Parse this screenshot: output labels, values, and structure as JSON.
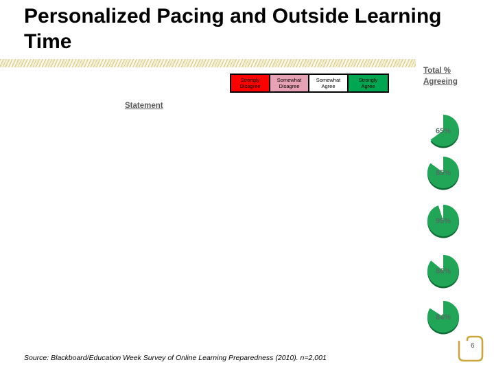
{
  "slide": {
    "title": "Personalized Pacing and Outside Learning Time",
    "page_number": "6",
    "source": "Source: Blackboard/Education Week Survey of Online Learning Preparedness (2010). n=2,001"
  },
  "headers": {
    "statement": "Statement",
    "total_agreeing": "Total % Agreeing"
  },
  "legend": {
    "columns": [
      {
        "label": "Strongly\nDisagree",
        "bg": "#FF0000"
      },
      {
        "label": "Somewhat\nDisagree",
        "bg": "#E8A2B6"
      },
      {
        "label": "Somewhat\nAgree",
        "bg": "#FFFFFF"
      },
      {
        "label": "Strongly\nAgree",
        "bg": "#00A651"
      }
    ]
  },
  "chart_data": {
    "type": "pie",
    "title": "Personalized Pacing and Outside Learning Time",
    "description": "Column of five pie charts, one per statement row, showing Total % Agreeing; filled wedge starts at 12 o'clock and sweeps clockwise",
    "legend_position": "top",
    "legend_entries": [
      "Strongly Disagree",
      "Somewhat Disagree",
      "Somewhat Agree",
      "Strongly Agree"
    ],
    "pies": [
      {
        "value": 65,
        "label": "65%"
      },
      {
        "value": 85,
        "label": "85%"
      },
      {
        "value": 95,
        "label": "95%"
      },
      {
        "value": 86,
        "label": "86%"
      },
      {
        "value": 84,
        "label": "84%"
      }
    ],
    "pie_color": "#21A556",
    "pie_shadow_color": "#0D6B35",
    "value_label_color": "#4F6F63"
  },
  "layout_hints": {
    "pie_tops": [
      164,
      225,
      295,
      368,
      435
    ]
  }
}
